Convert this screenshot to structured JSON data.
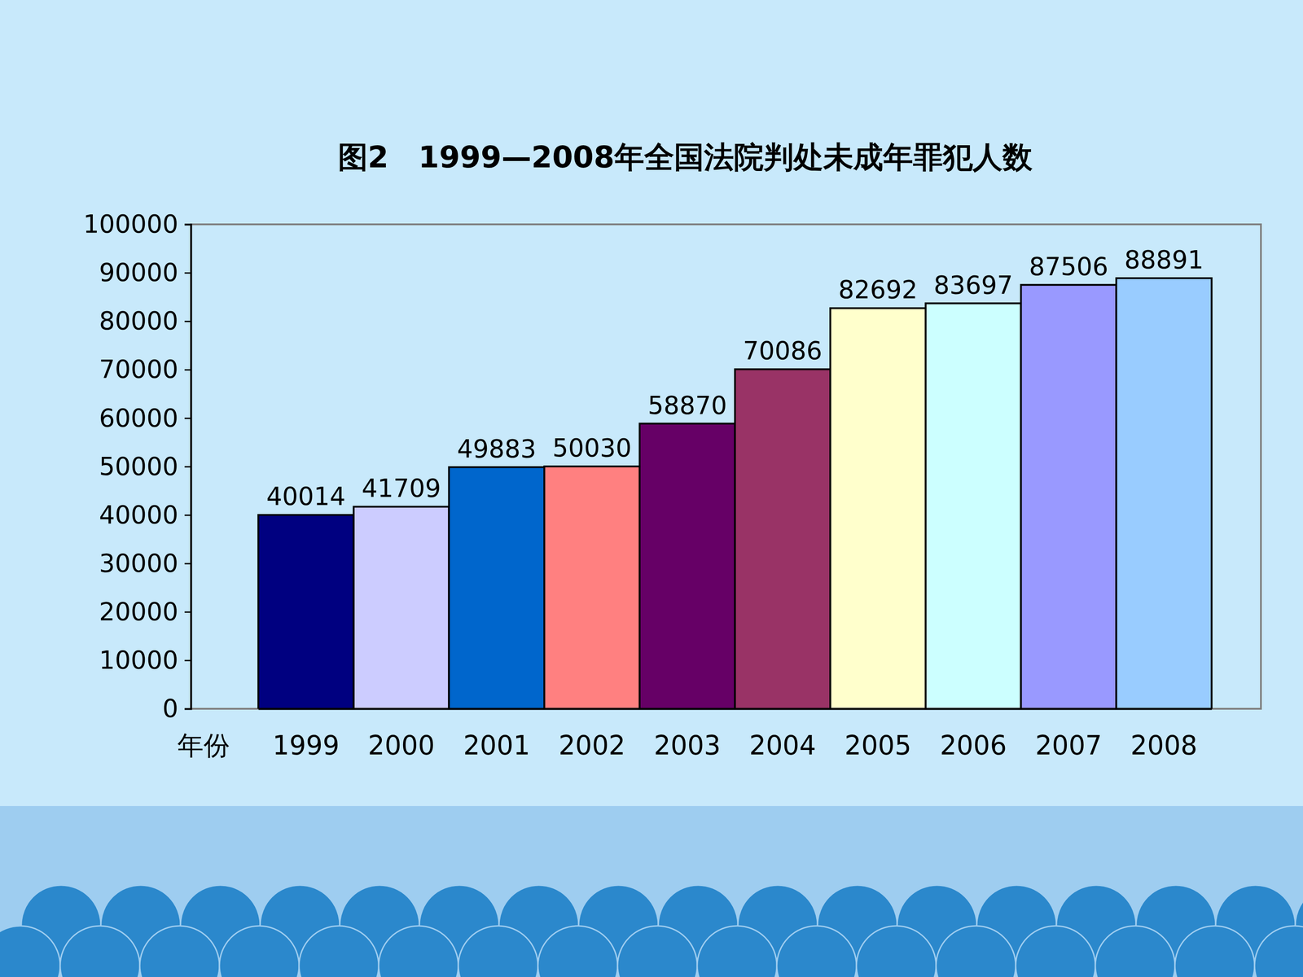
{
  "chart_data": {
    "type": "bar",
    "title": "图2　1999—2008年全国法院判处未成年罪犯人数",
    "xlabel": "年份",
    "categories": [
      "1999",
      "2000",
      "2001",
      "2002",
      "2003",
      "2004",
      "2005",
      "2006",
      "2007",
      "2008"
    ],
    "values": [
      40014,
      41709,
      49883,
      50030,
      58870,
      70086,
      82692,
      83697,
      87506,
      88891
    ],
    "colors": [
      "#000080",
      "#ccccff",
      "#0066cc",
      "#ff8080",
      "#660066",
      "#993366",
      "#ffffcc",
      "#ccffff",
      "#9999ff",
      "#99ccff"
    ],
    "ylim": [
      0,
      100000
    ],
    "yticks": [
      0,
      10000,
      20000,
      30000,
      40000,
      50000,
      60000,
      70000,
      80000,
      90000,
      100000
    ],
    "data_labels": true
  }
}
